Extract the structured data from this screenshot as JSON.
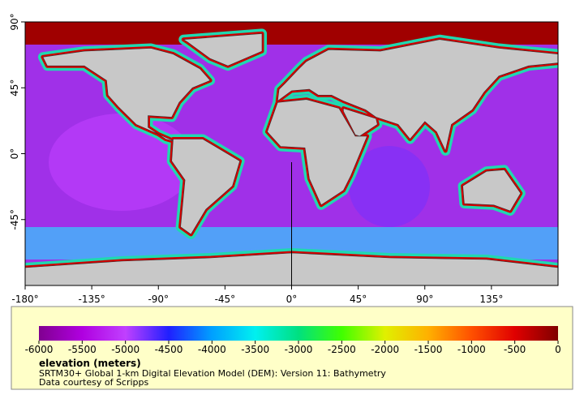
{
  "map": {
    "xlim": [
      -180,
      180
    ],
    "ylim": [
      -90,
      90
    ],
    "xticks": [
      {
        "value": -180,
        "label": "-180°"
      },
      {
        "value": -135,
        "label": "-135°"
      },
      {
        "value": -90,
        "label": "-90°"
      },
      {
        "value": -45,
        "label": "-45°"
      },
      {
        "value": 0,
        "label": "0°"
      },
      {
        "value": 45,
        "label": "45°"
      },
      {
        "value": 90,
        "label": "90°"
      },
      {
        "value": 135,
        "label": "135°"
      }
    ],
    "yticks": [
      {
        "value": 90,
        "label": "90°"
      },
      {
        "value": 45,
        "label": "45°"
      },
      {
        "value": 0,
        "label": "0°"
      },
      {
        "value": -45,
        "label": "-45°"
      }
    ]
  },
  "colorbar": {
    "label": "elevation (meters)",
    "lim": [
      -6000,
      0
    ],
    "ticks": [
      -6000,
      -5500,
      -5000,
      -4500,
      -4000,
      -3500,
      -3000,
      -2500,
      -2000,
      -1500,
      -1000,
      -500,
      0
    ],
    "colors": [
      "#800090",
      "#b000e0",
      "#c040ff",
      "#2020ff",
      "#00a0ff",
      "#00f0f0",
      "#00e080",
      "#40ff00",
      "#e0f000",
      "#ffb000",
      "#ff5000",
      "#e00000",
      "#800000"
    ]
  },
  "caption": [
    "SRTM30+ Global 1-km Digital Elevation Model (DEM): Version 11: Bathymetry",
    "Data courtesy of Scripps"
  ]
}
